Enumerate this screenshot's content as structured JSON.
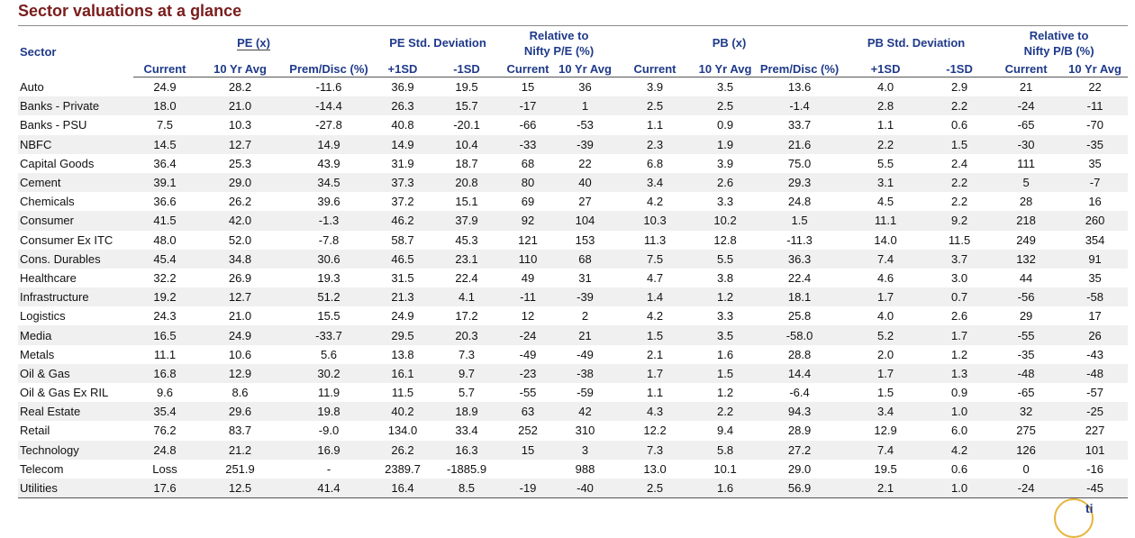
{
  "title": "Sector valuations at a glance",
  "groups": {
    "sector": "Sector",
    "pe": "PE (x)",
    "pe_std": "PE Std. Deviation",
    "rel_pe_1": "Relative to",
    "rel_pe_2": "Nifty P/E (%)",
    "pb": "PB (x)",
    "pb_std": "PB Std. Deviation",
    "rel_pb_1": "Relative to",
    "rel_pb_2": "Nifty P/B (%)"
  },
  "subheaders": [
    "Current",
    "10 Yr Avg",
    "Prem/Disc (%)",
    "+1SD",
    "-1SD",
    "Current",
    "10 Yr Avg",
    "Current",
    "10 Yr Avg",
    "Prem/Disc (%)",
    "+1SD",
    "-1SD",
    "Current",
    "10 Yr Avg"
  ],
  "rows": [
    [
      "Auto",
      "24.9",
      "28.2",
      "-11.6",
      "36.9",
      "19.5",
      "15",
      "36",
      "3.9",
      "3.5",
      "13.6",
      "4.0",
      "2.9",
      "21",
      "22"
    ],
    [
      "Banks - Private",
      "18.0",
      "21.0",
      "-14.4",
      "26.3",
      "15.7",
      "-17",
      "1",
      "2.5",
      "2.5",
      "-1.4",
      "2.8",
      "2.2",
      "-24",
      "-11"
    ],
    [
      "Banks - PSU",
      "7.5",
      "10.3",
      "-27.8",
      "40.8",
      "-20.1",
      "-66",
      "-53",
      "1.1",
      "0.9",
      "33.7",
      "1.1",
      "0.6",
      "-65",
      "-70"
    ],
    [
      "NBFC",
      "14.5",
      "12.7",
      "14.9",
      "14.9",
      "10.4",
      "-33",
      "-39",
      "2.3",
      "1.9",
      "21.6",
      "2.2",
      "1.5",
      "-30",
      "-35"
    ],
    [
      "Capital Goods",
      "36.4",
      "25.3",
      "43.9",
      "31.9",
      "18.7",
      "68",
      "22",
      "6.8",
      "3.9",
      "75.0",
      "5.5",
      "2.4",
      "111",
      "35"
    ],
    [
      "Cement",
      "39.1",
      "29.0",
      "34.5",
      "37.3",
      "20.8",
      "80",
      "40",
      "3.4",
      "2.6",
      "29.3",
      "3.1",
      "2.2",
      "5",
      "-7"
    ],
    [
      "Chemicals",
      "36.6",
      "26.2",
      "39.6",
      "37.2",
      "15.1",
      "69",
      "27",
      "4.2",
      "3.3",
      "24.8",
      "4.5",
      "2.2",
      "28",
      "16"
    ],
    [
      "Consumer",
      "41.5",
      "42.0",
      "-1.3",
      "46.2",
      "37.9",
      "92",
      "104",
      "10.3",
      "10.2",
      "1.5",
      "11.1",
      "9.2",
      "218",
      "260"
    ],
    [
      "Consumer Ex ITC",
      "48.0",
      "52.0",
      "-7.8",
      "58.7",
      "45.3",
      "121",
      "153",
      "11.3",
      "12.8",
      "-11.3",
      "14.0",
      "11.5",
      "249",
      "354"
    ],
    [
      "Cons. Durables",
      "45.4",
      "34.8",
      "30.6",
      "46.5",
      "23.1",
      "110",
      "68",
      "7.5",
      "5.5",
      "36.3",
      "7.4",
      "3.7",
      "132",
      "91"
    ],
    [
      "Healthcare",
      "32.2",
      "26.9",
      "19.3",
      "31.5",
      "22.4",
      "49",
      "31",
      "4.7",
      "3.8",
      "22.4",
      "4.6",
      "3.0",
      "44",
      "35"
    ],
    [
      "Infrastructure",
      "19.2",
      "12.7",
      "51.2",
      "21.3",
      "4.1",
      "-11",
      "-39",
      "1.4",
      "1.2",
      "18.1",
      "1.7",
      "0.7",
      "-56",
      "-58"
    ],
    [
      "Logistics",
      "24.3",
      "21.0",
      "15.5",
      "24.9",
      "17.2",
      "12",
      "2",
      "4.2",
      "3.3",
      "25.8",
      "4.0",
      "2.6",
      "29",
      "17"
    ],
    [
      "Media",
      "16.5",
      "24.9",
      "-33.7",
      "29.5",
      "20.3",
      "-24",
      "21",
      "1.5",
      "3.5",
      "-58.0",
      "5.2",
      "1.7",
      "-55",
      "26"
    ],
    [
      "Metals",
      "11.1",
      "10.6",
      "5.6",
      "13.8",
      "7.3",
      "-49",
      "-49",
      "2.1",
      "1.6",
      "28.8",
      "2.0",
      "1.2",
      "-35",
      "-43"
    ],
    [
      "Oil & Gas",
      "16.8",
      "12.9",
      "30.2",
      "16.1",
      "9.7",
      "-23",
      "-38",
      "1.7",
      "1.5",
      "14.4",
      "1.7",
      "1.3",
      "-48",
      "-48"
    ],
    [
      "Oil & Gas Ex RIL",
      "9.6",
      "8.6",
      "11.9",
      "11.5",
      "5.7",
      "-55",
      "-59",
      "1.1",
      "1.2",
      "-6.4",
      "1.5",
      "0.9",
      "-65",
      "-57"
    ],
    [
      "Real Estate",
      "35.4",
      "29.6",
      "19.8",
      "40.2",
      "18.9",
      "63",
      "42",
      "4.3",
      "2.2",
      "94.3",
      "3.4",
      "1.0",
      "32",
      "-25"
    ],
    [
      "Retail",
      "76.2",
      "83.7",
      "-9.0",
      "134.0",
      "33.4",
      "252",
      "310",
      "12.2",
      "9.4",
      "28.9",
      "12.9",
      "6.0",
      "275",
      "227"
    ],
    [
      "Technology",
      "24.8",
      "21.2",
      "16.9",
      "26.2",
      "16.3",
      "15",
      "3",
      "7.3",
      "5.8",
      "27.2",
      "7.4",
      "4.2",
      "126",
      "101"
    ],
    [
      "Telecom",
      "Loss",
      "251.9",
      "-",
      "2389.7",
      "-1885.9",
      "",
      "988",
      "13.0",
      "10.1",
      "29.0",
      "19.5",
      "0.6",
      "0",
      "-16"
    ],
    [
      "Utilities",
      "17.6",
      "12.5",
      "41.4",
      "16.4",
      "8.5",
      "-19",
      "-40",
      "2.5",
      "1.6",
      "56.9",
      "2.1",
      "1.0",
      "-24",
      "-45"
    ]
  ]
}
